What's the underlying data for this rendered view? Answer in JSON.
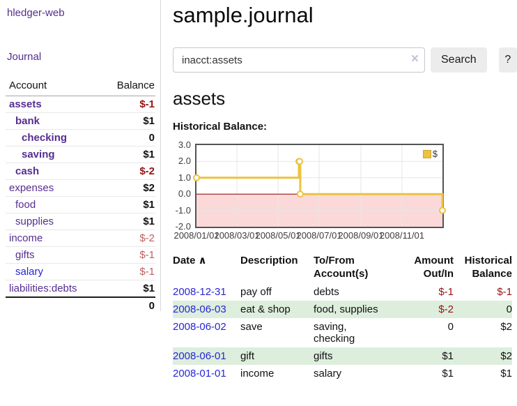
{
  "brand": "hledger-web",
  "nav": {
    "journal_label": "Journal"
  },
  "sidebar": {
    "table": {
      "account_header": "Account",
      "balance_header": "Balance",
      "rows": [
        {
          "name": "assets",
          "depth": "1",
          "emph": "bold",
          "link_color": "purple",
          "balance": "$-1",
          "tone": "neg"
        },
        {
          "name": "bank",
          "depth": "2",
          "emph": "bold",
          "link_color": "purple",
          "balance": "$1",
          "tone": "pos"
        },
        {
          "name": "checking",
          "depth": "3",
          "emph": "bold",
          "link_color": "purple",
          "balance": "0",
          "tone": "zero"
        },
        {
          "name": "saving",
          "depth": "3",
          "emph": "bold",
          "link_color": "purple",
          "balance": "$1",
          "tone": "pos"
        },
        {
          "name": "cash",
          "depth": "2",
          "emph": "bold",
          "link_color": "purple",
          "balance": "$-2",
          "tone": "neg"
        },
        {
          "name": "expenses",
          "depth": "1",
          "emph": "normal",
          "link_color": "purple",
          "balance": "$2",
          "tone": "pos"
        },
        {
          "name": "food",
          "depth": "2",
          "emph": "normal",
          "link_color": "purple",
          "balance": "$1",
          "tone": "pos"
        },
        {
          "name": "supplies",
          "depth": "2",
          "emph": "normal",
          "link_color": "purple",
          "balance": "$1",
          "tone": "pos"
        },
        {
          "name": "income",
          "depth": "1",
          "emph": "normal",
          "link_color": "purple",
          "balance": "$-2",
          "tone": "neg-soft"
        },
        {
          "name": "gifts",
          "depth": "2",
          "emph": "normal",
          "link_color": "purple",
          "balance": "$-1",
          "tone": "neg-soft"
        },
        {
          "name": "salary",
          "depth": "2",
          "emph": "normal",
          "link_color": "blue",
          "balance": "$-1",
          "tone": "neg-soft"
        },
        {
          "name": "liabilities:debts",
          "depth": "1",
          "emph": "normal",
          "link_color": "purple",
          "balance": "$1",
          "tone": "pos"
        }
      ],
      "total_value": "0"
    }
  },
  "header": {
    "title": "sample.journal"
  },
  "search": {
    "value": "inacct:assets",
    "clear_icon": "×",
    "button_label": "Search",
    "help_label": "?"
  },
  "account_page": {
    "title": "assets",
    "chart_label": "Historical Balance:"
  },
  "chart_data": {
    "type": "line",
    "title": "Historical Balance:",
    "series": [
      {
        "name": "$",
        "color": "#edc240",
        "steps": true,
        "points": [
          [
            "2008-01-01",
            1
          ],
          [
            "2008-06-01",
            2
          ],
          [
            "2008-06-02",
            2
          ],
          [
            "2008-06-03",
            0
          ],
          [
            "2008-12-31",
            -1
          ]
        ]
      }
    ],
    "x_range": [
      "2008-01-01",
      "2008-12-31"
    ],
    "x_ticks": [
      "2008-01-01",
      "2008-03-01",
      "2008-05-01",
      "2008-07-01",
      "2008-09-01",
      "2008-11-01"
    ],
    "x_tick_labels": [
      "2008/01/01",
      "2008/03/01",
      "2008/05/01",
      "2008/07/01",
      "2008/09/01",
      "2008/11/01"
    ],
    "y_ticks": [
      3.0,
      2.0,
      1.0,
      0.0,
      -1.0,
      -2.0
    ],
    "y_tick_labels": [
      "3.0",
      "2.0",
      "1.0",
      "0.0",
      "-1.0",
      "-2.0"
    ],
    "ylim": [
      -2.0,
      3.0
    ],
    "grid": true,
    "legend_position": "top-right",
    "grid_color": "#e6e6e6",
    "border_color": "#545454",
    "negative_fill": "#fbd9d9",
    "zero_line_color": "#8b0000",
    "marker_fill": "#ffffff"
  },
  "register": {
    "header": {
      "date": "Date",
      "sort_icon": "∧",
      "description": "Description",
      "tofrom_line1": "To/From",
      "tofrom_line2": "Account(s)",
      "amount_line1": "Amount",
      "amount_line2": "Out/In",
      "balance_line1": "Historical",
      "balance_line2": "Balance"
    },
    "rows": [
      {
        "date": "2008-12-31",
        "description": "pay off",
        "accounts": "debts",
        "amount": "$-1",
        "amount_tone": "neg",
        "balance": "$-1",
        "balance_tone": "neg"
      },
      {
        "date": "2008-06-03",
        "description": "eat & shop",
        "accounts": "food, supplies",
        "amount": "$-2",
        "amount_tone": "neg",
        "balance": "0",
        "balance_tone": "zero"
      },
      {
        "date": "2008-06-02",
        "description": "save",
        "accounts": "saving,\nchecking",
        "amount": "0",
        "amount_tone": "zero",
        "balance": "$2",
        "balance_tone": "pos"
      },
      {
        "date": "2008-06-01",
        "description": "gift",
        "accounts": "gifts",
        "amount": "$1",
        "amount_tone": "pos",
        "balance": "$2",
        "balance_tone": "pos"
      },
      {
        "date": "2008-01-01",
        "description": "income",
        "accounts": "salary",
        "amount": "$1",
        "amount_tone": "pos",
        "balance": "$1",
        "balance_tone": "pos"
      }
    ]
  }
}
